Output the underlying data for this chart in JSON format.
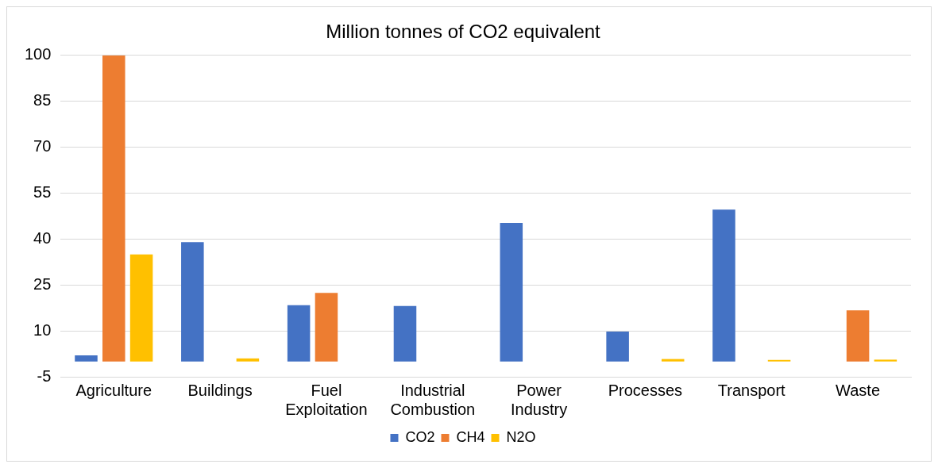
{
  "chart_data": {
    "type": "bar",
    "title": "Million tonnes of CO2 equivalent",
    "categories": [
      "Agriculture",
      "Buildings",
      "Fuel Exploitation",
      "Industrial Combustion",
      "Power Industry",
      "Processes",
      "Transport",
      "Waste"
    ],
    "series": [
      {
        "name": "CO2",
        "color": "#4472c4",
        "values": [
          2,
          39,
          18.4,
          18.1,
          45.3,
          9.8,
          49.6,
          0
        ]
      },
      {
        "name": "CH4",
        "color": "#ed7d31",
        "values": [
          100,
          0,
          22.4,
          0,
          0,
          0,
          0,
          16.7
        ]
      },
      {
        "name": "N2O",
        "color": "#ffc000",
        "values": [
          35,
          1,
          0,
          0,
          0,
          0.8,
          0.5,
          0.6
        ]
      }
    ],
    "ylim": [
      -5,
      100
    ],
    "yticks": [
      -5,
      10,
      25,
      40,
      55,
      70,
      85,
      100
    ],
    "grid": "y",
    "legend": "bottom"
  }
}
